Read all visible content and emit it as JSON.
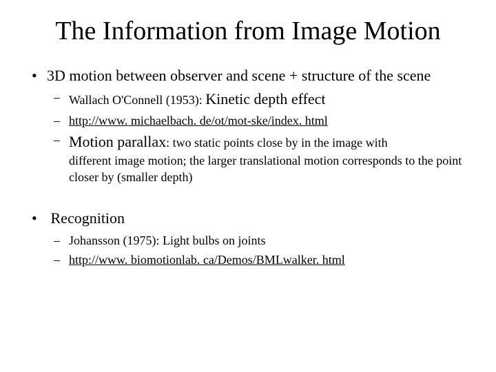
{
  "title": "The Information from Image Motion",
  "bullets": [
    {
      "text": "3D motion between observer and scene + structure of the scene",
      "sub": [
        {
          "prefix": "Wallach O'Connell (1953): ",
          "main": "Kinetic depth effect",
          "is_link": false
        },
        {
          "prefix": "",
          "main": "http://www. michaelbach. de/ot/mot-ske/index. html",
          "is_link": true
        },
        {
          "lead": "Motion parallax",
          "tail1": ": two static points close by in the image with",
          "tail2": "different image motion; the larger translational motion corresponds to the point closer by (smaller depth)"
        }
      ]
    },
    {
      "text": "Recognition",
      "sub": [
        {
          "prefix": "",
          "main": "Johansson (1975): Light bulbs on joints",
          "is_link": false
        },
        {
          "prefix": "",
          "main": "http://www. biomotionlab. ca/Demos/BMLwalker. html",
          "is_link": true
        }
      ]
    }
  ]
}
